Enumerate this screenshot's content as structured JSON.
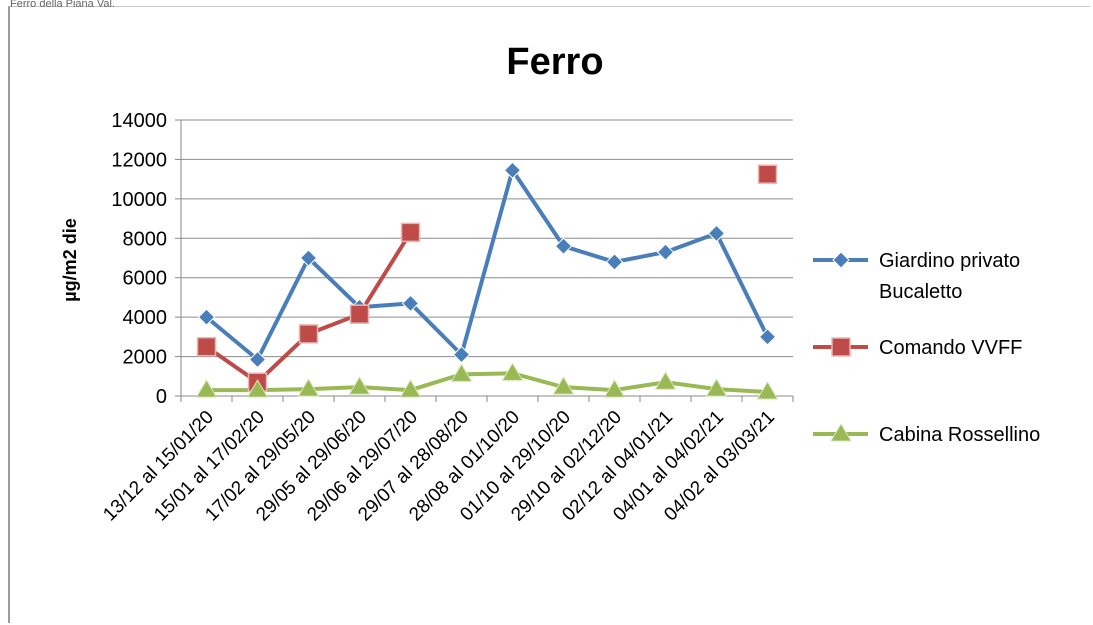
{
  "caption": "Ferro della Piana Val.",
  "chart_data": {
    "type": "line",
    "title": "Ferro",
    "ylabel": "µg/m2 die",
    "xlabel": "",
    "ylim": [
      0,
      14000
    ],
    "yticks": [
      0,
      2000,
      4000,
      6000,
      8000,
      10000,
      12000,
      14000
    ],
    "grid": true,
    "legend_position": "right",
    "categories": [
      "13/12 al 15/01/20",
      "15/01 al 17/02/20",
      "17/02 al 29/05/20",
      "29/05 al 29/06/20",
      "29/06 al 29/07/20",
      "29/07 al 28/08/20",
      "28/08 al 01/10/20",
      "01/10 al 29/10/20",
      "29/10 al 02/12/20",
      "02/12 al 04/01/21",
      "04/01 al 04/02/21",
      "04/02 al 03/03/21"
    ],
    "series": [
      {
        "name": "Giardino privato Bucaletto",
        "color": "#4a7ebb",
        "marker": "diamond",
        "values": [
          4000,
          1850,
          7000,
          4500,
          4700,
          2100,
          11450,
          7600,
          6800,
          7300,
          8250,
          3000
        ]
      },
      {
        "name": "Comando VVFF",
        "color": "#be4b48",
        "marker": "square",
        "values": [
          2500,
          700,
          3150,
          4150,
          8300,
          null,
          null,
          null,
          null,
          null,
          null,
          11250
        ]
      },
      {
        "name": "Cabina Rossellino",
        "color": "#98b954",
        "marker": "triangle",
        "values": [
          300,
          300,
          350,
          450,
          300,
          1100,
          1150,
          450,
          300,
          700,
          350,
          200
        ]
      }
    ]
  }
}
